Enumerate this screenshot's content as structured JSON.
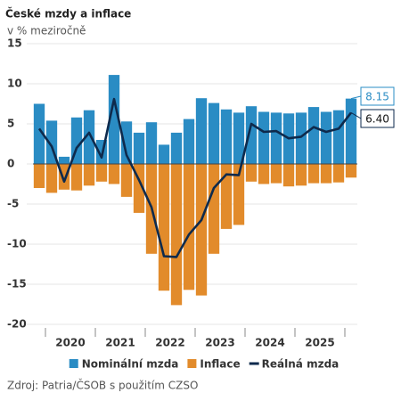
{
  "chart_data": {
    "type": "bar_line",
    "title": "České mzdy a inflace",
    "subtitle": "v % meziročně",
    "source": "Zdroj: Patria/ČSOB s použitím CZSO",
    "categories": [
      null,
      null,
      null,
      null,
      null,
      null,
      null,
      null,
      null,
      null,
      null,
      null,
      null,
      null,
      null,
      null,
      null,
      null,
      null,
      null,
      null,
      null,
      null,
      null,
      null,
      null
    ],
    "x_groups": [
      "2020",
      "2021",
      "2022",
      "2023",
      "2024",
      "2025"
    ],
    "ylim": [
      -20,
      15
    ],
    "yticks": [
      -20,
      -15,
      -10,
      -5,
      0,
      5,
      10,
      15
    ],
    "grid": true,
    "legend": "bottom",
    "series": [
      {
        "name": "Nominální mzda",
        "kind": "bar",
        "color": "#2a8cc4",
        "values": [
          7.5,
          5.4,
          0.9,
          5.8,
          6.7,
          3.0,
          11.1,
          5.3,
          3.9,
          5.2,
          2.4,
          3.9,
          5.6,
          8.2,
          7.6,
          6.8,
          6.4,
          7.2,
          6.5,
          6.4,
          6.3,
          6.4,
          7.1,
          6.5,
          6.7,
          8.15
        ],
        "value_labels": [
          null,
          null,
          null,
          null,
          null,
          null,
          null,
          null,
          null,
          null,
          null,
          null,
          null,
          null,
          null,
          null,
          null,
          null,
          null,
          null,
          null,
          null,
          null,
          null,
          null,
          "8.15"
        ]
      },
      {
        "name": "Inflace",
        "kind": "bar",
        "color": "#e28b2b",
        "values": [
          -3.0,
          -3.6,
          -3.2,
          -3.3,
          -2.7,
          -2.2,
          -2.5,
          -4.1,
          -6.1,
          -11.2,
          -15.8,
          -17.6,
          -15.7,
          -16.4,
          -11.2,
          -8.1,
          -7.6,
          -2.2,
          -2.5,
          -2.4,
          -2.8,
          -2.7,
          -2.4,
          -2.4,
          -2.3,
          -1.7
        ]
      },
      {
        "name": "Reálná mzda",
        "kind": "line",
        "color": "#0e2a4c",
        "values": [
          4.4,
          2.2,
          -2.2,
          2.0,
          3.9,
          0.8,
          8.1,
          1.1,
          -2.0,
          -5.4,
          -11.5,
          -11.6,
          -8.8,
          -7.0,
          -3.0,
          -1.3,
          -1.4,
          5.0,
          4.0,
          4.1,
          3.2,
          3.4,
          4.6,
          4.0,
          4.4,
          6.4
        ],
        "value_labels": [
          null,
          null,
          null,
          null,
          null,
          null,
          null,
          null,
          null,
          null,
          null,
          null,
          null,
          null,
          null,
          null,
          null,
          null,
          null,
          null,
          null,
          null,
          null,
          null,
          null,
          "6.40"
        ]
      }
    ]
  }
}
